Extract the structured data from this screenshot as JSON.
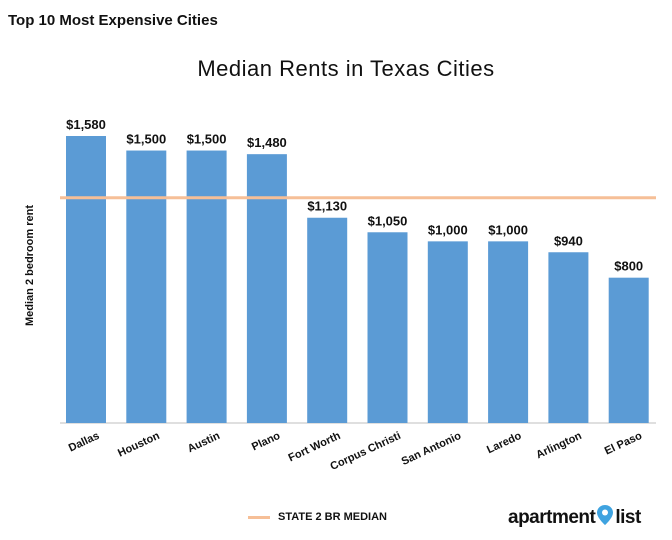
{
  "page_heading": "Top 10 Most Expensive Cities",
  "brand": {
    "text_left": "apartment",
    "text_right": "list",
    "pin_icon": "map-pin-icon",
    "pin_color": "#3fa3e0"
  },
  "chart_data": {
    "type": "bar",
    "title": "Median Rents in Texas Cities",
    "ylabel": "Median 2 bedroom rent",
    "xlabel": "",
    "categories": [
      "Dallas",
      "Houston",
      "Austin",
      "Plano",
      "Fort Worth",
      "Corpus Christi",
      "San Antonio",
      "Laredo",
      "Arlington",
      "El Paso"
    ],
    "values": [
      1580,
      1500,
      1500,
      1480,
      1130,
      1050,
      1000,
      1000,
      940,
      800
    ],
    "value_labels": [
      "$1,580",
      "$1,500",
      "$1,500",
      "$1,480",
      "$1,130",
      "$1,050",
      "$1,000",
      "$1,000",
      "$940",
      "$800"
    ],
    "ylim": [
      0,
      1580
    ],
    "reference_line": {
      "label": "STATE 2 BR MEDIAN",
      "value": 1240,
      "color": "#f6bf97"
    },
    "bar_color": "#5b9bd5",
    "grid": false,
    "legend": "bottom"
  }
}
